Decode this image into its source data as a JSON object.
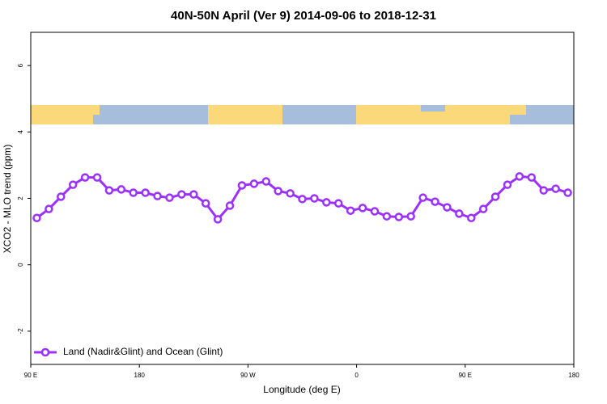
{
  "chart_data": {
    "type": "line",
    "title": "40N-50N April (Ver 9)   2014-09-06 to 2018-12-31",
    "x_label": "Longitude (deg E)",
    "y_label": "XCO2 - MLO trend (ppm)",
    "x": [
      95,
      105,
      115,
      125,
      135,
      145,
      155,
      165,
      175,
      185,
      195,
      205,
      215,
      225,
      235,
      245,
      255,
      265,
      275,
      285,
      295,
      305,
      315,
      325,
      335,
      345,
      355,
      365,
      375,
      385,
      395,
      405,
      415,
      425,
      435,
      445,
      455,
      465,
      475,
      485,
      495,
      505,
      515,
      525,
      535
    ],
    "series": [
      {
        "name": "Land (Nadir&Glint) and Ocean (Glint)",
        "color": "#9b30ff",
        "values": [
          1.41,
          1.68,
          2.05,
          2.41,
          2.63,
          2.63,
          2.24,
          2.27,
          2.17,
          2.17,
          2.07,
          2.02,
          2.12,
          2.12,
          1.85,
          1.37,
          1.78,
          2.39,
          2.44,
          2.51,
          2.22,
          2.15,
          1.98,
          2.0,
          1.88,
          1.85,
          1.63,
          1.71,
          1.61,
          1.46,
          1.44,
          1.46,
          2.02,
          1.9,
          1.73,
          1.54,
          1.41,
          1.68,
          2.05,
          2.41,
          2.66,
          2.63,
          2.24,
          2.29,
          2.17
        ]
      }
    ],
    "xlim": [
      90,
      540
    ],
    "xticks": [
      {
        "value": 90,
        "label": "90 E"
      },
      180,
      {
        "value": 270,
        "label": "90 W"
      },
      {
        "value": 360,
        "label": "0"
      },
      {
        "value": 450,
        "label": "90 E"
      },
      {
        "value": 540,
        "label": "180"
      }
    ],
    "ylim": [
      -3,
      7
    ],
    "yticks": [
      -2,
      0,
      2,
      4,
      6
    ],
    "legend": "bottom-left"
  }
}
